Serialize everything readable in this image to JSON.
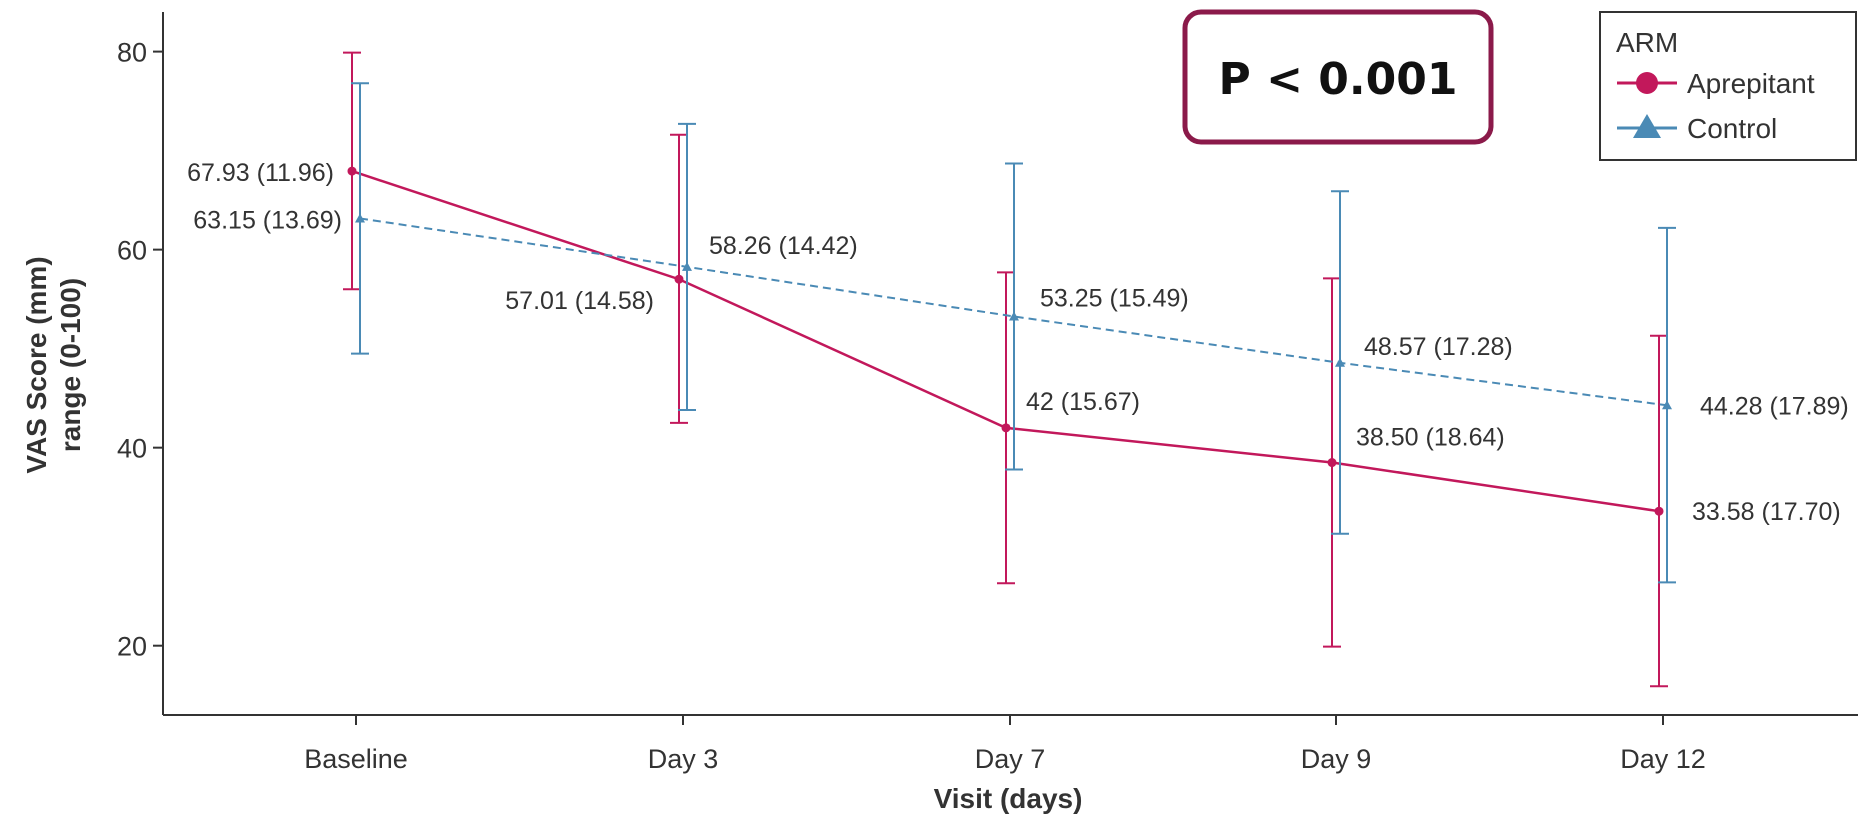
{
  "chart_data": {
    "type": "line",
    "xlabel": "Visit (days)",
    "ylabel_line1": "VAS Score (mm)",
    "ylabel_line2": "range (0-100)",
    "categories": [
      "Baseline",
      "Day 3",
      "Day 7",
      "Day 9",
      "Day 12"
    ],
    "ylim": [
      13,
      84
    ],
    "yticks": [
      20,
      40,
      60,
      80
    ],
    "grid": false,
    "legend": {
      "title": "ARM",
      "placement": "top-right",
      "entries": [
        "Aprepitant",
        "Control"
      ]
    },
    "annotation": "P < 0.001",
    "series": [
      {
        "name": "Aprepitant",
        "color": "#c2185b",
        "marker": "circle",
        "line_style": "solid",
        "values": [
          67.93,
          57.01,
          42,
          38.5,
          33.58
        ],
        "lower": [
          56.0,
          42.5,
          26.3,
          19.9,
          15.9
        ],
        "upper": [
          79.9,
          71.6,
          57.7,
          57.1,
          51.3
        ],
        "labels": [
          "67.93 (11.96)",
          "57.01 (14.58)",
          "42 (15.67)",
          "38.50 (18.64)",
          "33.58 (17.70)"
        ]
      },
      {
        "name": "Control",
        "color": "#4a8ab5",
        "marker": "triangle",
        "line_style": "dashed",
        "values": [
          63.15,
          58.26,
          53.25,
          48.57,
          44.28
        ],
        "lower": [
          49.5,
          43.8,
          37.8,
          31.3,
          26.4
        ],
        "upper": [
          76.8,
          72.7,
          68.7,
          65.9,
          62.2
        ],
        "labels": [
          "63.15 (13.69)",
          "58.26 (14.42)",
          "53.25 (15.49)",
          "48.57 (17.28)",
          "44.28 (17.89)"
        ]
      }
    ]
  }
}
